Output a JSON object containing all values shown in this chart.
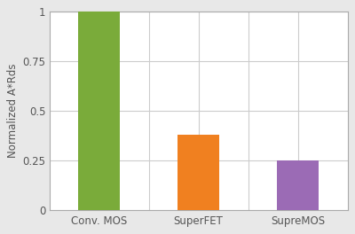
{
  "categories": [
    "Conv. MOS",
    "SuperFET",
    "SupreMOS"
  ],
  "values": [
    1.0,
    0.38,
    0.25
  ],
  "bar_colors": [
    "#7aab3a",
    "#f08020",
    "#9b6bb5"
  ],
  "ylabel": "Normalized A*Rds",
  "ylim": [
    0,
    1.0
  ],
  "yticks": [
    0,
    0.25,
    0.5,
    0.75,
    1
  ],
  "background_color": "#e8e8e8",
  "plot_background": "#ffffff",
  "bar_width": 0.42,
  "grid_color": "#cccccc",
  "tick_label_fontsize": 8.5,
  "ylabel_fontsize": 8.5,
  "spine_color": "#aaaaaa"
}
